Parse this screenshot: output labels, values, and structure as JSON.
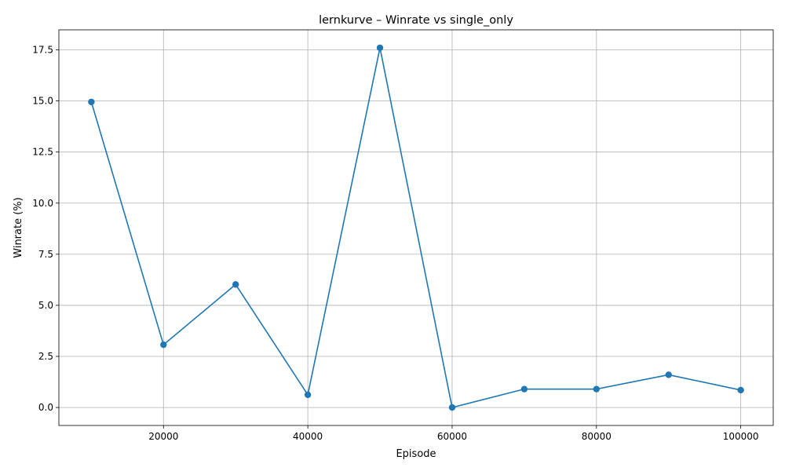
{
  "chart_data": {
    "type": "line",
    "title": "lernkurve – Winrate vs single_only",
    "xlabel": "Episode",
    "ylabel": "Winrate (%)",
    "xlim": [
      5500,
      104500
    ],
    "ylim": [
      -0.88,
      18.48
    ],
    "xticks": [
      20000,
      40000,
      60000,
      80000,
      100000
    ],
    "xtick_labels": [
      "20000",
      "40000",
      "60000",
      "80000",
      "100000"
    ],
    "yticks": [
      0.0,
      2.5,
      5.0,
      7.5,
      10.0,
      12.5,
      15.0,
      17.5
    ],
    "ytick_labels": [
      "0.0",
      "2.5",
      "5.0",
      "7.5",
      "10.0",
      "12.5",
      "15.0",
      "17.5"
    ],
    "grid": true,
    "legend": "none",
    "color": "#1f77b4",
    "marker": "circle",
    "series": [
      {
        "x": [
          10000,
          20000,
          30000,
          40000,
          50000,
          60000,
          70000,
          80000,
          90000,
          100000
        ],
        "y": [
          14.95,
          3.07,
          6.02,
          0.62,
          17.6,
          0.0,
          0.9,
          0.9,
          1.6,
          0.85
        ]
      }
    ]
  }
}
